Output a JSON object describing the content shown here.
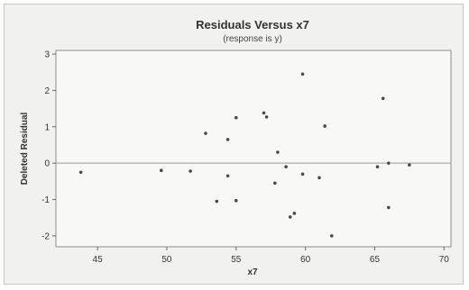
{
  "chart_data": {
    "type": "scatter",
    "title": "Residuals Versus x7",
    "subtitle": "(response is y)",
    "xlabel": "x7",
    "ylabel": "Deleted Residual",
    "xlim": [
      42,
      70.5
    ],
    "ylim": [
      -2.3,
      3.1
    ],
    "xticks": [
      45,
      50,
      55,
      60,
      65,
      70
    ],
    "yticks": [
      -2,
      -1,
      0,
      1,
      2,
      3
    ],
    "reference_line_y": 0,
    "grid": false,
    "colors": {
      "plot_area": "#f8f8f6",
      "background": "#f1f1ef",
      "points": "#4a4a4a",
      "reference_line": "#9a9a9a"
    },
    "points": [
      {
        "x": 43.8,
        "y": -0.25
      },
      {
        "x": 49.6,
        "y": -0.2
      },
      {
        "x": 51.7,
        "y": -0.22
      },
      {
        "x": 52.8,
        "y": 0.82
      },
      {
        "x": 53.6,
        "y": -1.05
      },
      {
        "x": 54.4,
        "y": 0.65
      },
      {
        "x": 54.4,
        "y": -0.35
      },
      {
        "x": 55.0,
        "y": 1.25
      },
      {
        "x": 55.0,
        "y": -1.03
      },
      {
        "x": 57.0,
        "y": 1.38
      },
      {
        "x": 57.2,
        "y": 1.27
      },
      {
        "x": 57.8,
        "y": -0.55
      },
      {
        "x": 58.0,
        "y": 0.3
      },
      {
        "x": 58.6,
        "y": -0.1
      },
      {
        "x": 58.9,
        "y": -1.48
      },
      {
        "x": 59.2,
        "y": -1.38
      },
      {
        "x": 59.8,
        "y": 2.45
      },
      {
        "x": 59.8,
        "y": -0.3
      },
      {
        "x": 61.0,
        "y": -0.4
      },
      {
        "x": 61.4,
        "y": 1.02
      },
      {
        "x": 61.9,
        "y": -2.0
      },
      {
        "x": 65.2,
        "y": -0.1
      },
      {
        "x": 65.6,
        "y": 1.78
      },
      {
        "x": 66.0,
        "y": 0.0
      },
      {
        "x": 66.0,
        "y": -1.22
      },
      {
        "x": 67.5,
        "y": -0.05
      }
    ]
  }
}
